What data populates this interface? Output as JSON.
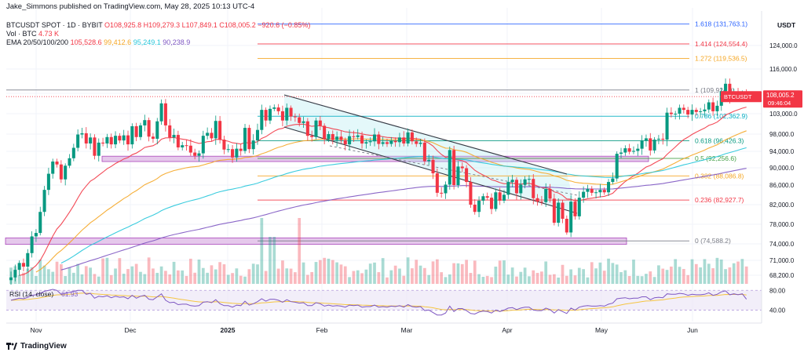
{
  "header": {
    "published": "Jake_Simmons published on TradingView.com, May 28, 2025 10:13 UTC-4",
    "symbol": "BTCUSDT SPOT · 1D · BYBIT",
    "o": "O108,925.8",
    "h": "H109,279.3",
    "l": "L107,849.1",
    "c": "C108,005.2",
    "chg": "−920.6 (−0.85%)",
    "vol_label": "Vol · BTC",
    "vol_value": "4.73 K",
    "ema_label": "EMA 20/50/100/200",
    "ema_values": [
      "105,528.6",
      "99,412.6",
      "95,249.1",
      "90,238.9"
    ]
  },
  "currency": "USDT",
  "price_tag": {
    "symbol": "BTCUSDT",
    "price": "108,005.2",
    "time": "09:46:04"
  },
  "rsi_label": "RSI (14, close)",
  "rsi_value": "61.93",
  "footer": {
    "brand": "TradingView"
  },
  "colors": {
    "up": "#089981",
    "down": "#f23645",
    "ema20": "#f23645",
    "ema50": "#f5a623",
    "ema100": "#26c6da",
    "ema200": "#7e57c2",
    "zone": "#e1bee7",
    "zone_border": "#ab47bc",
    "rsi": "#7e57c2"
  },
  "chart_data": {
    "type": "candlestick",
    "x_ticks": [
      "Nov",
      "Dec",
      "2025",
      "Feb",
      "Mar",
      "Apr",
      "May",
      "Jun"
    ],
    "y_ticks": [
      124000,
      116000,
      109000,
      103000,
      98000,
      94000,
      90000,
      86000,
      82000,
      78000,
      74000,
      71000,
      68200
    ],
    "y_tick_labels": [
      "124,000.0",
      "116,000.0",
      "109,000.0",
      "103,000.0",
      "98,000.0",
      "94,000.0",
      "90,000.0",
      "86,000.0",
      "82,000.0",
      "78,000.0",
      "74,000.0",
      "71,000.0",
      "68,200.0"
    ],
    "rsi_ticks": [
      80,
      40
    ],
    "rsi_tick_labels": [
      "80.00",
      "40.00"
    ],
    "fib_levels": [
      {
        "label": "1.618 (131,763.1)",
        "price": 131763.1,
        "color": "#2962ff"
      },
      {
        "label": "1.414 (124,554.4)",
        "price": 124554.4,
        "color": "#f23645"
      },
      {
        "label": "1.272 (119,536.5)",
        "price": 119536.5,
        "color": "#f5a623"
      },
      {
        "label": "1 (109,924.9)",
        "price": 109924.9,
        "color": "#787b86"
      },
      {
        "label": "0.786 (102,362.9)",
        "price": 102362.9,
        "color": "#00acc1"
      },
      {
        "label": "0.618 (96,426.3)",
        "price": 96426.3,
        "color": "#089981"
      },
      {
        "label": "0.5 (92,256.6)",
        "price": 92256.6,
        "color": "#43a047"
      },
      {
        "label": "0.382 (88,086.8)",
        "price": 88086.8,
        "color": "#f5a623"
      },
      {
        "label": "0.236 (82,927.7)",
        "price": 82927.7,
        "color": "#f23645"
      },
      {
        "label": "0 (74,588.2)",
        "price": 74588.2,
        "color": "#787b86"
      }
    ],
    "support_zones": [
      {
        "low": 91500,
        "high": 92800
      },
      {
        "low": 73900,
        "high": 75200
      }
    ],
    "last_price": 108005.2,
    "closes": [
      67800,
      69200,
      70500,
      69800,
      72300,
      75500,
      76200,
      80500,
      85000,
      88600,
      91500,
      90800,
      87300,
      90500,
      92300,
      94800,
      97900,
      98200,
      95800,
      97200,
      92900,
      96000,
      95800,
      97300,
      95600,
      97600,
      96500,
      97700,
      95600,
      99900,
      97300,
      100100,
      101400,
      97400,
      96900,
      101100,
      106000,
      100100,
      97200,
      97800,
      94900,
      95400,
      95300,
      93700,
      92900,
      93500,
      97600,
      98300,
      97000,
      101200,
      96700,
      94400,
      94500,
      92500,
      94600,
      94100,
      99500,
      94500,
      96500,
      99000,
      104100,
      101300,
      104400,
      104800,
      103700,
      101300,
      104700,
      102300,
      102100,
      100700,
      101100,
      97600,
      97300,
      101300,
      100000,
      96800,
      98000,
      96600,
      97400,
      96600,
      95600,
      97500,
      97300,
      97700,
      95800,
      96100,
      96300,
      97900,
      95700,
      96100,
      95700,
      96400,
      96100,
      97200,
      95800,
      98400,
      96300,
      95700,
      96000,
      91600,
      91900,
      88700,
      84400,
      84300,
      86100,
      94300,
      86000,
      90300,
      89900,
      86700,
      82000,
      80500,
      82800,
      83700,
      83400,
      81100,
      84500,
      82800,
      84000,
      86700,
      87200,
      84300,
      86100,
      87300,
      87400,
      83300,
      82600,
      82500,
      85200,
      83200,
      78300,
      82400,
      79100,
      76300,
      82600,
      79600,
      83400,
      84600,
      85200,
      84400,
      84500,
      85000,
      84500,
      86700,
      87500,
      93400,
      93700,
      94700,
      93900,
      94100,
      94600,
      96500,
      97000,
      94200,
      96700,
      96900,
      96700,
      103300,
      102900,
      103000,
      104700,
      104100,
      102800,
      104100,
      103500,
      103700,
      104200,
      106300,
      103700,
      105300,
      109600,
      111700,
      107300,
      109000,
      108200,
      109000,
      108005
    ],
    "rsi_values": [
      60,
      62,
      64,
      63,
      66,
      70,
      71,
      74,
      78,
      80,
      82,
      80,
      72,
      74,
      76,
      78,
      80,
      80,
      72,
      74,
      64,
      68,
      67,
      69,
      65,
      68,
      66,
      67,
      63,
      70,
      64,
      68,
      70,
      62,
      61,
      67,
      73,
      60,
      55,
      56,
      51,
      52,
      52,
      49,
      48,
      49,
      56,
      57,
      55,
      61,
      53,
      49,
      49,
      46,
      50,
      49,
      58,
      50,
      53,
      57,
      63,
      58,
      62,
      62,
      60,
      56,
      61,
      57,
      56,
      54,
      55,
      49,
      49,
      55,
      53,
      48,
      50,
      48,
      49,
      48,
      46,
      50,
      49,
      50,
      46,
      47,
      47,
      50,
      46,
      47,
      46,
      48,
      47,
      49,
      46,
      51,
      47,
      46,
      47,
      39,
      40,
      35,
      30,
      30,
      34,
      48,
      37,
      43,
      43,
      39,
      33,
      32,
      36,
      38,
      37,
      34,
      40,
      37,
      40,
      44,
      45,
      41,
      44,
      46,
      46,
      40,
      39,
      39,
      44,
      41,
      34,
      41,
      37,
      33,
      44,
      40,
      46,
      48,
      49,
      48,
      48,
      49,
      48,
      52,
      54,
      63,
      64,
      65,
      63,
      64,
      64,
      67,
      67,
      61,
      65,
      66,
      65,
      73,
      72,
      72,
      74,
      73,
      70,
      72,
      71,
      71,
      72,
      75,
      70,
      72,
      77,
      79,
      71,
      73,
      71,
      73,
      62
    ]
  }
}
